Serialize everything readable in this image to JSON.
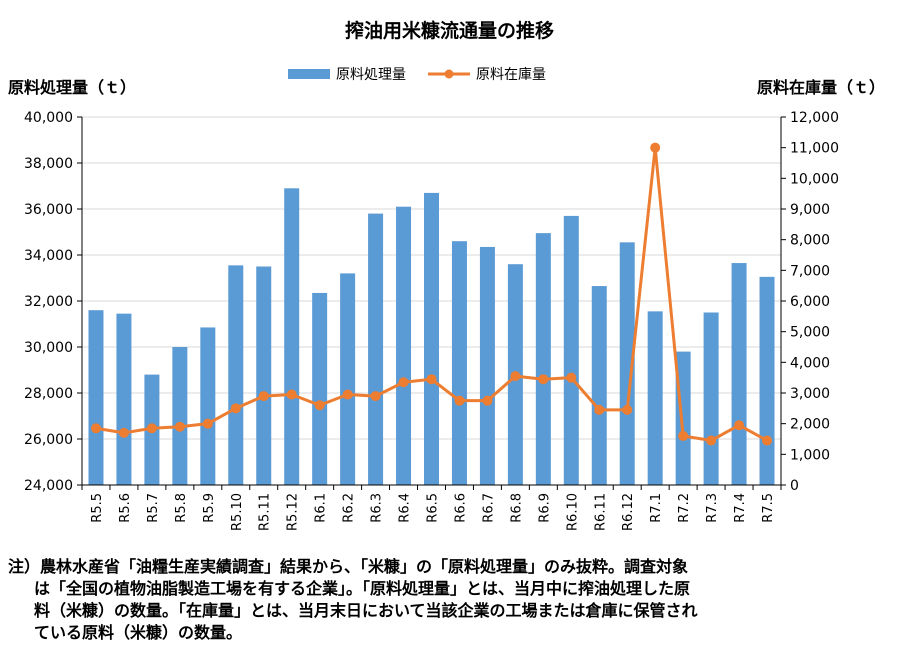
{
  "chart_data": {
    "type": "bar+line",
    "title": "搾油用米糠流通量の推移",
    "categories": [
      "R5.5",
      "R5.6",
      "R5.7",
      "R5.8",
      "R5.9",
      "R5.10",
      "R5.11",
      "R5.12",
      "R6.1",
      "R6.2",
      "R6.3",
      "R6.4",
      "R6.5",
      "R6.6",
      "R6.7",
      "R6.8",
      "R6.9",
      "R6.10",
      "R6.11",
      "R6.12",
      "R7.1",
      "R7.2",
      "R7.3",
      "R7.4",
      "R7.5"
    ],
    "series": [
      {
        "name": "原料処理量",
        "type": "bar",
        "axis": "left",
        "color": "#5b9bd5",
        "values": [
          31600,
          31450,
          28800,
          30000,
          30850,
          33550,
          33500,
          36900,
          32350,
          33200,
          35800,
          36100,
          36700,
          34600,
          34350,
          33600,
          34950,
          35700,
          32650,
          34550,
          31550,
          29800,
          31500,
          33650,
          33050
        ]
      },
      {
        "name": "原料在庫量",
        "type": "line",
        "axis": "right",
        "color": "#ed7d31",
        "values": [
          1850,
          1700,
          1850,
          1900,
          2000,
          2500,
          2900,
          2950,
          2600,
          2950,
          2900,
          3350,
          3450,
          2750,
          2750,
          3550,
          3450,
          3500,
          2450,
          2450,
          11000,
          1600,
          1450,
          1950,
          1450
        ]
      }
    ],
    "y_left": {
      "label": "原料処理量（ｔ）",
      "min": 24000,
      "max": 40000,
      "step": 2000,
      "ticks": [
        "24,000",
        "26,000",
        "28,000",
        "30,000",
        "32,000",
        "34,000",
        "36,000",
        "38,000",
        "40,000"
      ]
    },
    "y_right": {
      "label": "原料在庫量（ｔ）",
      "min": 0,
      "max": 12000,
      "step": 1000,
      "ticks": [
        "0",
        "1,000",
        "2,000",
        "3,000",
        "4,000",
        "5,000",
        "6,000",
        "7,000",
        "8,000",
        "9,000",
        "10,000",
        "11,000",
        "12,000"
      ]
    },
    "legend_position": "top-center",
    "grid": "horizontal"
  },
  "note": [
    "注）農林水産省「油糧生産実績調査」結果から、「米糠」の「原料処理量」のみ抜粋。調査対象",
    "は「全国の植物油脂製造工場を有する企業」。「原料処理量」とは、当月中に搾油処理した原",
    "料（米糠）の数量。「在庫量」とは、当月末日において当該企業の工場または倉庫に保管され",
    "ている原料（米糠）の数量。"
  ]
}
